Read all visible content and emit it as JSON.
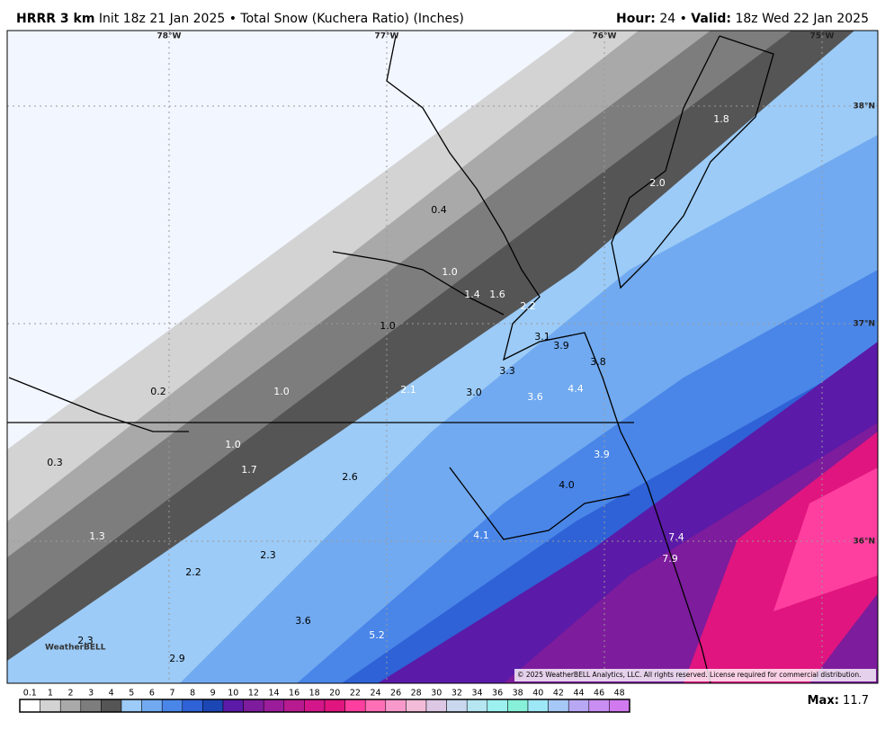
{
  "header": {
    "model": "HRRR 3 km",
    "description": "Init 18z 21 Jan 2025 • Total Snow (Kuchera Ratio) (Inches)",
    "hour_label": "Hour:",
    "hour": "24 •",
    "valid_label": "Valid:",
    "valid": "18z Wed 22 Jan 2025"
  },
  "map": {
    "longitudes": [
      "78°W",
      "77°W",
      "76°W",
      "75°W"
    ],
    "latitudes": [
      "38°N",
      "37°N",
      "36°N"
    ],
    "snow_labels": [
      "0.4",
      "1.0",
      "1.4",
      "1.6",
      "2.2",
      "1.8",
      "2.0",
      "1.0",
      "3.1",
      "3.9",
      "3.8",
      "3.3",
      "3.0",
      "3.6",
      "4.4",
      "2.1",
      "0.2",
      "1.0",
      "1.0",
      "0.3",
      "1.7",
      "3.9",
      "2.6",
      "4.0",
      "1.3",
      "4.1",
      "7.4",
      "2.3",
      "7.9",
      "2.2",
      "3.6",
      "5.2",
      "2.3",
      "2.9"
    ],
    "logo": "WeatherBELL",
    "copyright": "© 2025 WeatherBELL Analytics, LLC. All rights reserved. License required for commercial distribution."
  },
  "legend": {
    "labels": [
      "0.1",
      "1",
      "2",
      "3",
      "4",
      "5",
      "6",
      "7",
      "8",
      "9",
      "10",
      "12",
      "14",
      "16",
      "18",
      "20",
      "22",
      "24",
      "26",
      "28",
      "30",
      "32",
      "34",
      "36",
      "38",
      "40",
      "42",
      "44",
      "46",
      "48"
    ],
    "max_label": "Max:",
    "max": "11.7"
  }
}
